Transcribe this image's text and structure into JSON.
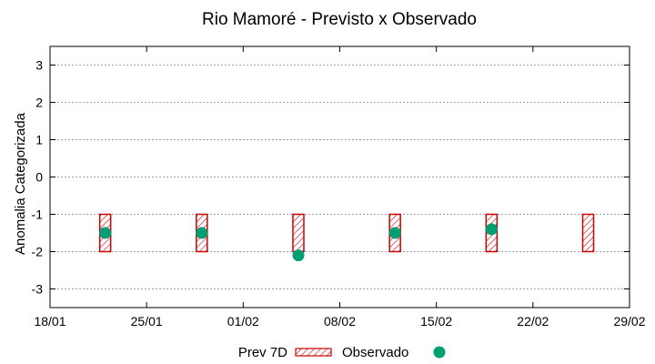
{
  "chart_data": {
    "type": "interval_scatter",
    "title": "Rio Mamoré - Previsto x Observado",
    "xlabel": "",
    "ylabel": "Anomalia Categorizada",
    "x_range": [
      "18/01",
      "29/02"
    ],
    "x_ticks": [
      "18/01",
      "25/01",
      "01/02",
      "08/02",
      "15/02",
      "22/02",
      "29/02"
    ],
    "ylim": [
      -3.5,
      3.5
    ],
    "y_ticks": [
      3,
      2,
      1,
      0,
      -1,
      -2,
      -3
    ],
    "grid": true,
    "legend_position": "bottom-center",
    "forecast": {
      "name": "Prev 7D",
      "color": "#cc0000",
      "pattern": "diagonal-hatch",
      "intervals": [
        {
          "date": "22/01",
          "low": -2,
          "high": -1
        },
        {
          "date": "29/01",
          "low": -2,
          "high": -1
        },
        {
          "date": "05/02",
          "low": -2,
          "high": -1
        },
        {
          "date": "12/02",
          "low": -2,
          "high": -1
        },
        {
          "date": "19/02",
          "low": -2,
          "high": -1
        },
        {
          "date": "26/02",
          "low": -2,
          "high": -1
        }
      ]
    },
    "observed": {
      "name": "Observado",
      "color": "#009e73",
      "points": [
        {
          "date": "22/01",
          "value": -1.5
        },
        {
          "date": "29/01",
          "value": -1.5
        },
        {
          "date": "05/02",
          "value": -2.1
        },
        {
          "date": "12/02",
          "value": -1.5
        },
        {
          "date": "19/02",
          "value": -1.4
        }
      ]
    }
  }
}
